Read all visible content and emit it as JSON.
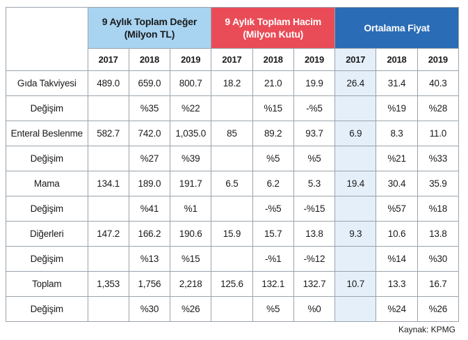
{
  "table": {
    "groups": [
      {
        "label_line1": "9 Aylık Toplam Değer",
        "label_line2": "(Milyon TL)",
        "color": "#a8d4f2"
      },
      {
        "label_line1": "9 Aylık Toplam Hacim",
        "label_line2": "(Milyon Kutu)",
        "color": "#ea4c57"
      },
      {
        "label_line1": "Ortalama Fiyat",
        "label_line2": "",
        "color": "#2a6cb6"
      }
    ],
    "years": [
      "2017",
      "2018",
      "2019",
      "2017",
      "2018",
      "2019",
      "2017",
      "2018",
      "2019"
    ],
    "rows": [
      {
        "label": "Gıda Takviyesi",
        "cells": [
          "489.0",
          "659.0",
          "800.7",
          "18.2",
          "21.0",
          "19.9",
          "26.4",
          "31.4",
          "40.3"
        ]
      },
      {
        "label": "Değişim",
        "cells": [
          "",
          "%35",
          "%22",
          "",
          "%15",
          "-%5",
          "",
          "%19",
          "%28"
        ]
      },
      {
        "label": "Enteral Beslenme",
        "cells": [
          "582.7",
          "742.0",
          "1,035.0",
          "85",
          "89.2",
          "93.7",
          "6.9",
          "8.3",
          "11.0"
        ]
      },
      {
        "label": "Değişim",
        "cells": [
          "",
          "%27",
          "%39",
          "",
          "%5",
          "%5",
          "",
          "%21",
          "%33"
        ]
      },
      {
        "label": "Mama",
        "cells": [
          "134.1",
          "189.0",
          "191.7",
          "6.5",
          "6.2",
          "5.3",
          "19.4",
          "30.4",
          "35.9"
        ]
      },
      {
        "label": "Değişim",
        "cells": [
          "",
          "%41",
          "%1",
          "",
          "-%5",
          "-%15",
          "",
          "%57",
          "%18"
        ]
      },
      {
        "label": "Diğerleri",
        "cells": [
          "147.2",
          "166.2",
          "190.6",
          "15.9",
          "15.7",
          "13.8",
          "9.3",
          "10.6",
          "13.8"
        ]
      },
      {
        "label": "Değişim",
        "cells": [
          "",
          "%13",
          "%15",
          "",
          "-%1",
          "-%12",
          "",
          "%14",
          "%30"
        ]
      },
      {
        "label": "Toplam",
        "cells": [
          "1,353",
          "1,756",
          "2,218",
          "125.6",
          "132.1",
          "132.7",
          "10.7",
          "13.3",
          "16.7"
        ]
      },
      {
        "label": "Değişim",
        "cells": [
          "",
          "%30",
          "%26",
          "",
          "%5",
          "%0",
          "",
          "%24",
          "%26"
        ]
      }
    ]
  },
  "source": "Kaynak: KPMG"
}
